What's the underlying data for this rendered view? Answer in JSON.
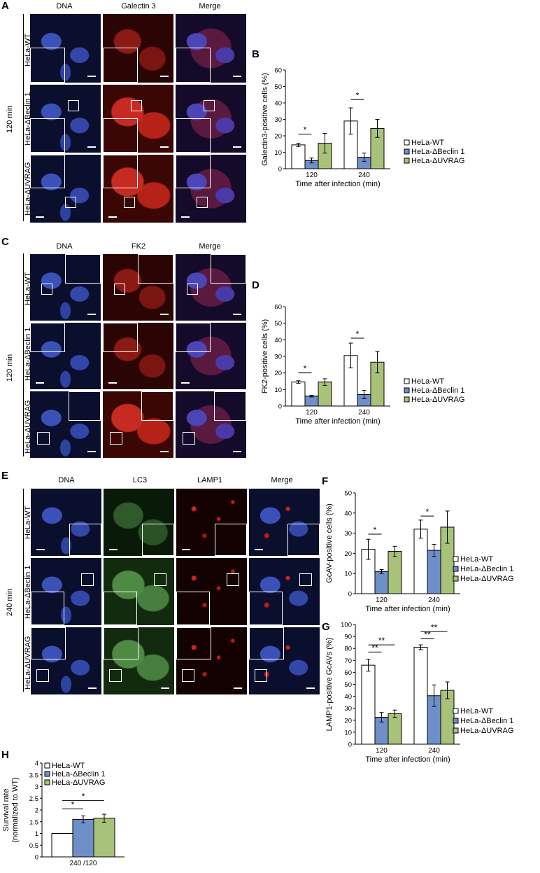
{
  "panels": {
    "A": {
      "label": "A",
      "channels": [
        "DNA",
        "Galectin 3",
        "Merge"
      ],
      "rows": [
        "HeLa-WT",
        "HeLa-ΔBeclin 1",
        "HeLa-ΔUVRAG"
      ],
      "time": "120 min"
    },
    "C": {
      "label": "C",
      "channels": [
        "DNA",
        "FK2",
        "Merge"
      ],
      "rows": [
        "HeLa-WT",
        "HeLa-ΔBeclin 1",
        "HeLa-ΔUVRAG"
      ],
      "time": "120 min"
    },
    "E": {
      "label": "E",
      "channels": [
        "DNA",
        "LC3",
        "LAMP1",
        "Merge"
      ],
      "rows": [
        "HeLa-WT",
        "HeLa-ΔBeclin 1",
        "HeLa-ΔUVRAG"
      ],
      "time": "240 min"
    }
  },
  "legend": [
    "HeLa-WT",
    "HeLa-ΔBeclin 1",
    "HeLa-ΔUVRAG"
  ],
  "colors": {
    "wt": "#ffffff",
    "beclin": "#6f8fc8",
    "uvrag": "#a9c27a",
    "stroke": "#000000"
  },
  "chart_data": [
    {
      "label": "B",
      "type": "bar",
      "ylabel": "Galectin3-positive cells (%)",
      "xlabel": "Time after infection (min)",
      "categories": [
        "120",
        "240"
      ],
      "ylim": [
        0,
        60
      ],
      "yticks": [
        "0",
        "10",
        "20",
        "30",
        "40",
        "50",
        "60"
      ],
      "series": [
        {
          "name": "HeLa-WT",
          "values": [
            14.5,
            29
          ],
          "errors": [
            1,
            8
          ]
        },
        {
          "name": "HeLa-ΔBeclin 1",
          "values": [
            5,
            7
          ],
          "errors": [
            1.5,
            2.5
          ]
        },
        {
          "name": "HeLa-ΔUVRAG",
          "values": [
            15.5,
            24.5
          ],
          "errors": [
            6,
            5.5
          ]
        }
      ],
      "significance": [
        {
          "text": "*",
          "category": 0,
          "from": 0,
          "to": 1,
          "y": 21
        },
        {
          "text": "*",
          "category": 1,
          "from": 0,
          "to": 1,
          "y": 42
        }
      ]
    },
    {
      "label": "D",
      "type": "bar",
      "ylabel": "FK2-positive cells (%)",
      "xlabel": "Time after infection (min)",
      "categories": [
        "120",
        "240"
      ],
      "ylim": [
        0,
        60
      ],
      "yticks": [
        "0",
        "10",
        "20",
        "30",
        "40",
        "50",
        "60"
      ],
      "series": [
        {
          "name": "HeLa-WT",
          "values": [
            14.5,
            30.5
          ],
          "errors": [
            0.8,
            7.5
          ]
        },
        {
          "name": "HeLa-ΔBeclin 1",
          "values": [
            6,
            7
          ],
          "errors": [
            0.5,
            2.5
          ]
        },
        {
          "name": "HeLa-ΔUVRAG",
          "values": [
            14.5,
            26.5
          ],
          "errors": [
            2,
            6.5
          ]
        }
      ],
      "significance": [
        {
          "text": "*",
          "category": 0,
          "from": 0,
          "to": 1,
          "y": 20
        },
        {
          "text": "*",
          "category": 1,
          "from": 0,
          "to": 1,
          "y": 41
        }
      ]
    },
    {
      "label": "F",
      "type": "bar",
      "ylabel": "GcAV-positive cells (%)",
      "xlabel": "Time after infection (min)",
      "categories": [
        "120",
        "240"
      ],
      "ylim": [
        0,
        50
      ],
      "yticks": [
        "0",
        "10",
        "20",
        "30",
        "40",
        "50"
      ],
      "series": [
        {
          "name": "HeLa-WT",
          "values": [
            22,
            32
          ],
          "errors": [
            5,
            4.5
          ]
        },
        {
          "name": "HeLa-ΔBeclin 1",
          "values": [
            11,
            21.5
          ],
          "errors": [
            1,
            3
          ]
        },
        {
          "name": "HeLa-ΔUVRAG",
          "values": [
            21,
            33
          ],
          "errors": [
            2.5,
            8
          ]
        }
      ],
      "significance": [
        {
          "text": "*",
          "category": 0,
          "from": 0,
          "to": 1,
          "y": 29.5
        },
        {
          "text": "*",
          "category": 1,
          "from": 0,
          "to": 1,
          "y": 38.5
        }
      ]
    },
    {
      "label": "G",
      "type": "bar",
      "ylabel": "LAMP1-positive GcAVs (%)",
      "xlabel": "Time after infection (min)",
      "categories": [
        "120",
        "240"
      ],
      "ylim": [
        0,
        100
      ],
      "yticks": [
        "0",
        "10",
        "20",
        "30",
        "40",
        "50",
        "60",
        "70",
        "80",
        "90",
        "100"
      ],
      "series": [
        {
          "name": "HeLa-WT",
          "values": [
            66,
            81
          ],
          "errors": [
            5,
            2
          ]
        },
        {
          "name": "HeLa-ΔBeclin 1",
          "values": [
            22.5,
            40.5
          ],
          "errors": [
            4,
            9
          ]
        },
        {
          "name": "HeLa-ΔUVRAG",
          "values": [
            25.5,
            45
          ],
          "errors": [
            3,
            7
          ]
        }
      ],
      "significance": [
        {
          "text": "**",
          "category": 0,
          "from": 0,
          "to": 1,
          "y": 77
        },
        {
          "text": "**",
          "category": 0,
          "from": 0,
          "to": 2,
          "y": 83
        },
        {
          "text": "**",
          "category": 1,
          "from": 0,
          "to": 1,
          "y": 88
        },
        {
          "text": "**",
          "category": 1,
          "from": 0,
          "to": 2,
          "y": 94
        }
      ]
    },
    {
      "label": "H",
      "type": "bar",
      "ylabel": "Survival rate (normalized to WT)",
      "xlabel": "",
      "categories": [
        "240 /120"
      ],
      "ylim": [
        0,
        4
      ],
      "yticks": [
        "0",
        "0.5",
        "1",
        "1.5",
        "2",
        "2.5",
        "3",
        "3.5",
        "4"
      ],
      "series": [
        {
          "name": "HeLa-WT",
          "values": [
            1
          ],
          "errors": [
            0
          ]
        },
        {
          "name": "HeLa-ΔBeclin 1",
          "values": [
            1.6
          ],
          "errors": [
            0.15
          ]
        },
        {
          "name": "HeLa-ΔUVRAG",
          "values": [
            1.65
          ],
          "errors": [
            0.17
          ]
        }
      ],
      "significance": [
        {
          "text": "*",
          "category": 0,
          "from": 0,
          "to": 1,
          "y": 2.05
        },
        {
          "text": "*",
          "category": 0,
          "from": 0,
          "to": 2,
          "y": 2.4
        }
      ]
    }
  ]
}
